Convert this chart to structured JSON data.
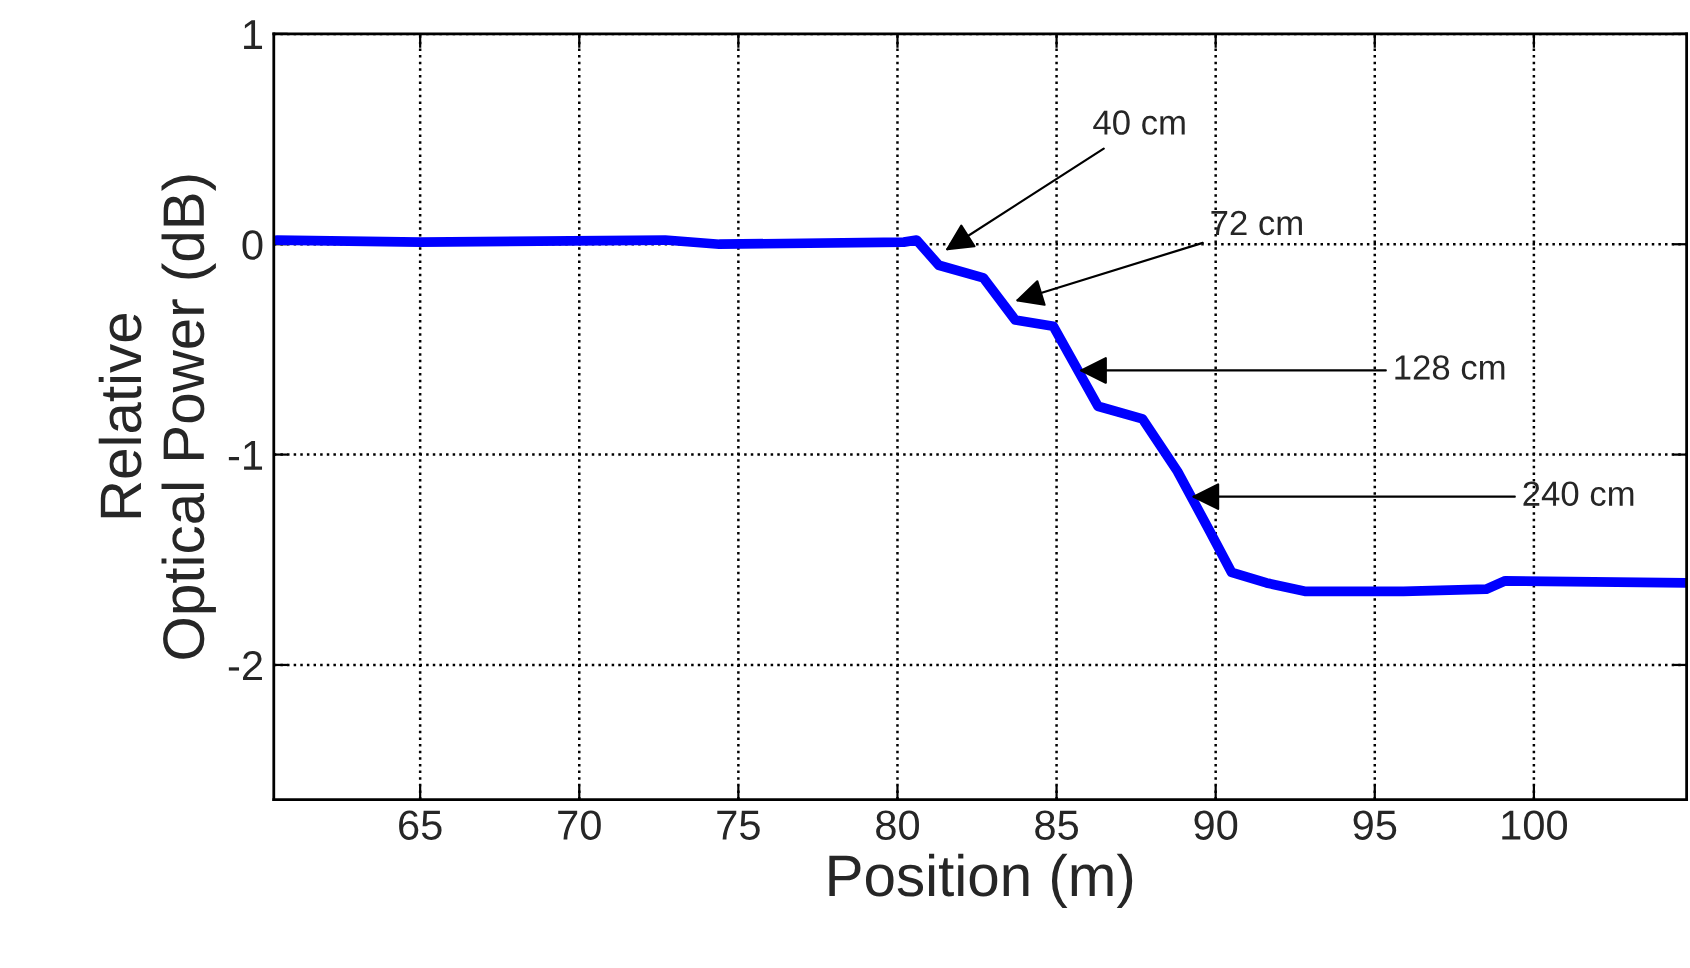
{
  "chart_data": {
    "type": "line",
    "xlabel": "Position (m)",
    "ylabel": "Relative\nOptical Power (dB)",
    "x": [
      60.5,
      65,
      72.7,
      74.4,
      80.2,
      80.6,
      81.3,
      82.7,
      83.7,
      84.9,
      86.3,
      87.7,
      88.8,
      89.8,
      90.5,
      91.6,
      92.8,
      95.9,
      98.5,
      99.1,
      104.8
    ],
    "series": [
      {
        "color": "#0000ff",
        "values": [
          0.02,
          0.01,
          0.02,
          0.0,
          0.01,
          0.02,
          -0.1,
          -0.16,
          -0.36,
          -0.39,
          -0.77,
          -0.83,
          -1.08,
          -1.36,
          -1.56,
          -1.61,
          -1.65,
          -1.65,
          -1.64,
          -1.6,
          -1.61
        ]
      }
    ],
    "xlim": [
      60.4,
      104.8
    ],
    "ylim": [
      -2.64,
      1
    ],
    "xticks": [
      65,
      70,
      75,
      80,
      85,
      90,
      95,
      100
    ],
    "yticks": [
      -2,
      -1,
      0,
      1
    ],
    "grid": true,
    "line_style": "solid",
    "marker": "none",
    "annotations": [
      {
        "text": "40 cm",
        "x": 81.5,
        "y": -0.03
      },
      {
        "text": "72 cm",
        "x": 83.7,
        "y": -0.27
      },
      {
        "text": "128 cm",
        "x": 85.7,
        "y": -0.6
      },
      {
        "text": "240 cm",
        "x": 89.23,
        "y": -1.2
      }
    ]
  }
}
